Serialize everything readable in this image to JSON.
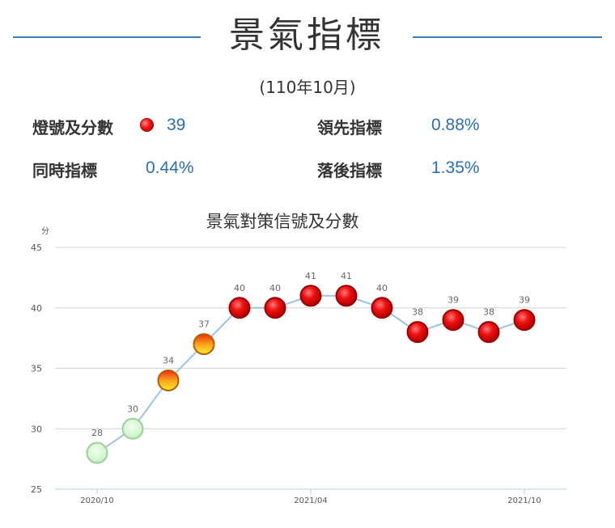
{
  "page": {
    "title": "景氣指標",
    "period": "(110年10月)"
  },
  "stats": {
    "signal_label": "燈號及分數",
    "signal_icon": "red-light-icon",
    "signal_score": "39",
    "leading_label": "領先指標",
    "leading_value": "0.88%",
    "coincident_label": "同時指標",
    "coincident_value": "0.44%",
    "lagging_label": "落後指標",
    "lagging_value": "1.35%"
  },
  "chart_data": {
    "type": "line",
    "title": "景氣對策信號及分數",
    "ylabel": "分",
    "ylim": [
      25,
      45
    ],
    "yticks": [
      25,
      30,
      35,
      40,
      45
    ],
    "x": [
      "2020/10",
      "2020/11",
      "2020/12",
      "2021/01",
      "2021/02",
      "2021/03",
      "2021/04",
      "2021/05",
      "2021/06",
      "2021/07",
      "2021/08",
      "2021/09",
      "2021/10"
    ],
    "xtick_labels": [
      "2020/10",
      "2021/04",
      "2021/10"
    ],
    "values": [
      28,
      30,
      34,
      37,
      40,
      40,
      41,
      41,
      40,
      38,
      39,
      38,
      39
    ],
    "signal_colors": [
      "green",
      "green",
      "yellow-red",
      "yellow-red",
      "red",
      "red",
      "red",
      "red",
      "red",
      "red",
      "red",
      "red",
      "red"
    ],
    "line_color": "#9cc3e4",
    "grid": true
  }
}
